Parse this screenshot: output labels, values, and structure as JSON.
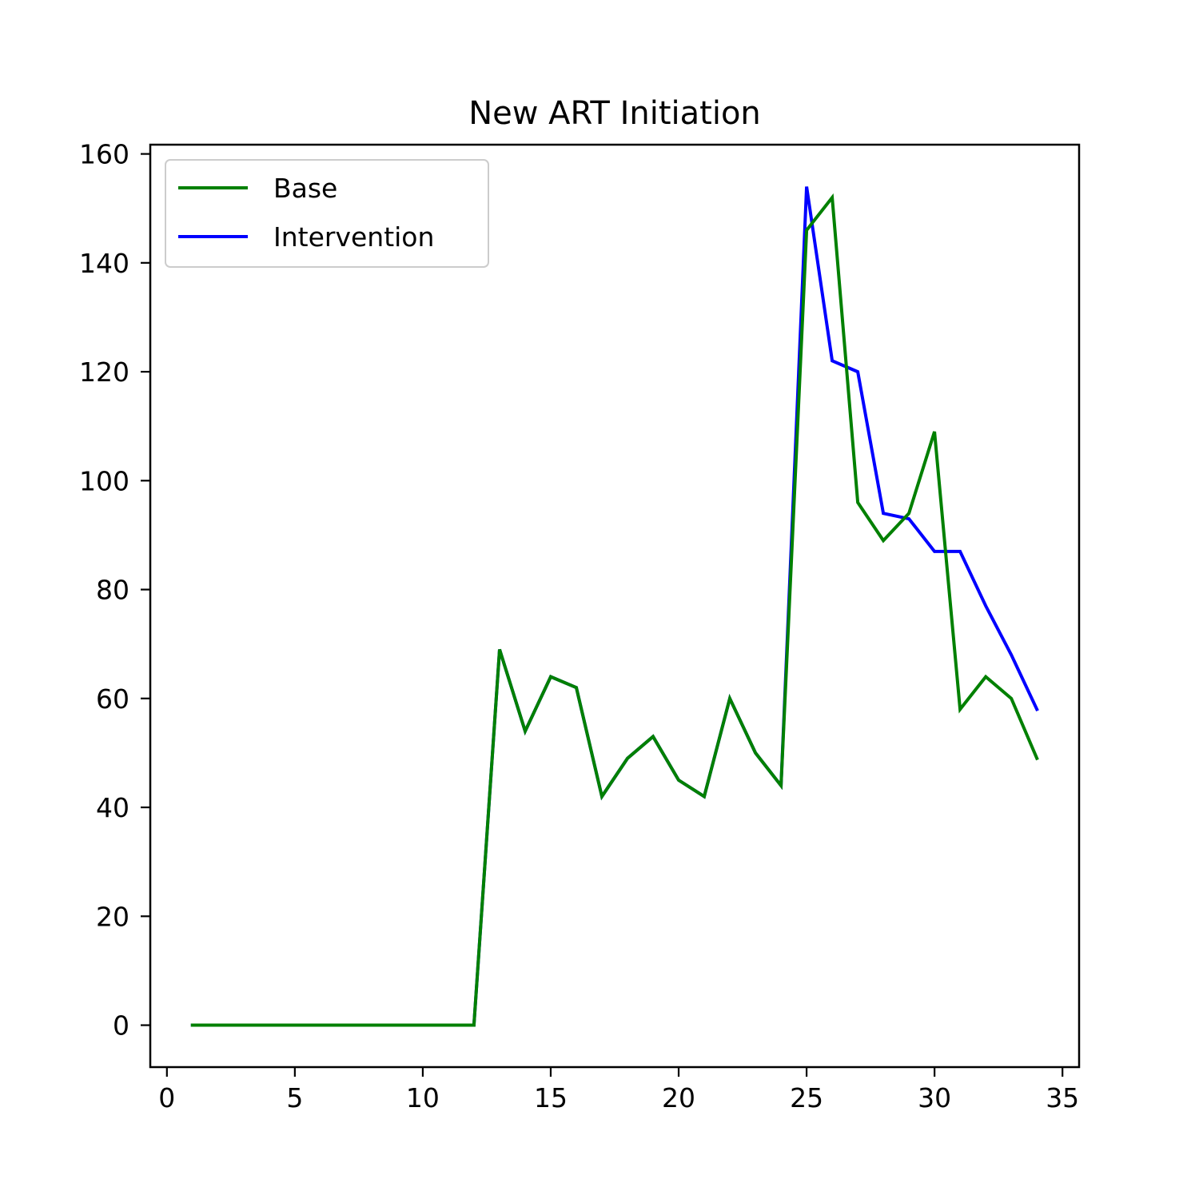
{
  "chart_data": {
    "type": "line",
    "title": "New ART Initiation",
    "xlabel": "",
    "ylabel": "",
    "xlim": [
      -0.65,
      35.65
    ],
    "ylim": [
      -7.7,
      161.7
    ],
    "xticks": [
      0,
      5,
      10,
      15,
      20,
      25,
      30,
      35
    ],
    "yticks": [
      0,
      20,
      40,
      60,
      80,
      100,
      120,
      140,
      160
    ],
    "grid": false,
    "legend_position": "top-left",
    "x": [
      1,
      2,
      3,
      4,
      5,
      6,
      7,
      8,
      9,
      10,
      11,
      12,
      13,
      14,
      15,
      16,
      17,
      18,
      19,
      20,
      21,
      22,
      23,
      24,
      25,
      26,
      27,
      28,
      29,
      30,
      31,
      32,
      33,
      34
    ],
    "series": [
      {
        "name": "Base",
        "color": "#008000",
        "values": [
          0,
          0,
          0,
          0,
          0,
          0,
          0,
          0,
          0,
          0,
          0,
          0,
          69,
          54,
          64,
          62,
          42,
          49,
          53,
          45,
          42,
          60,
          50,
          44,
          146,
          152,
          96,
          89,
          94,
          109,
          58,
          64,
          60,
          49
        ]
      },
      {
        "name": "Intervention",
        "color": "#0000ff",
        "values": [
          0,
          0,
          0,
          0,
          0,
          0,
          0,
          0,
          0,
          0,
          0,
          0,
          69,
          54,
          64,
          62,
          42,
          49,
          53,
          45,
          42,
          60,
          50,
          44,
          154,
          122,
          120,
          94,
          93,
          87,
          87,
          77,
          68,
          58
        ]
      }
    ]
  }
}
